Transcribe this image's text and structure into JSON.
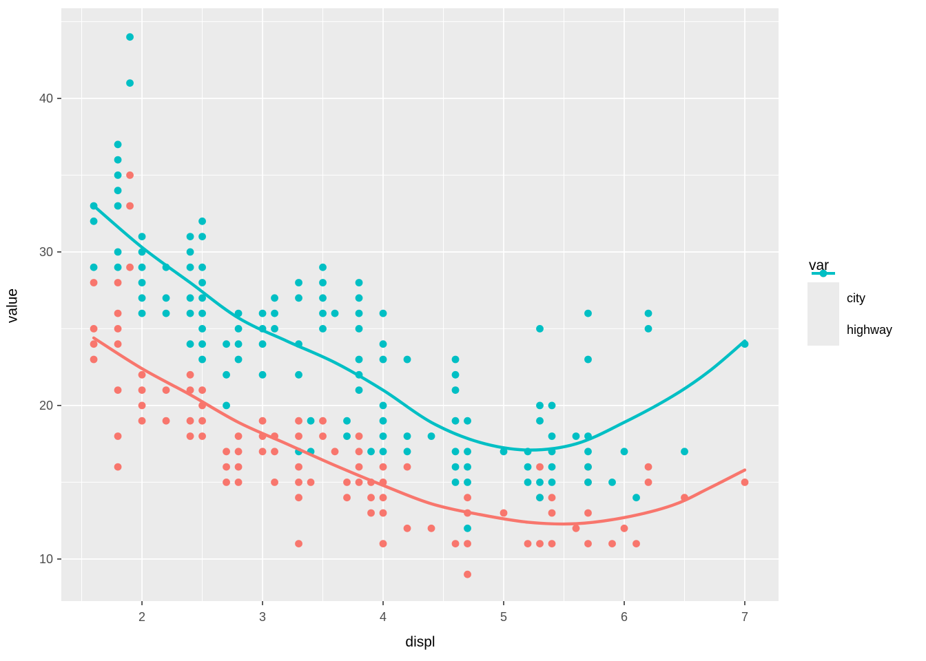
{
  "chart_data": {
    "type": "scatter",
    "title": "",
    "xlabel": "displ",
    "ylabel": "value",
    "x_ticks": [
      2,
      3,
      4,
      5,
      6,
      7
    ],
    "x_minor_ticks": [
      1.5,
      2.5,
      3.5,
      4.5,
      5.5,
      6.5
    ],
    "y_ticks": [
      10,
      20,
      30,
      40
    ],
    "y_minor_ticks": [
      15,
      25,
      35,
      45
    ],
    "x_domain": [
      1.331,
      7.28
    ],
    "y_domain": [
      7.26,
      45.87
    ],
    "grid": true,
    "panel_bg": "#EBEBEB",
    "grid_color": "#FFFFFF",
    "axis_text_color": "#4D4D4D",
    "tick_mark_color": "#333333",
    "legend_position": "right",
    "legend": {
      "title": "var",
      "entries": [
        {
          "label": "city",
          "color": "#F8766D"
        },
        {
          "label": "highway",
          "color": "#00BFC4"
        }
      ]
    },
    "series": [
      {
        "name": "city",
        "color": "#F8766D",
        "points": [
          [
            1.6,
            28
          ],
          [
            1.6,
            25
          ],
          [
            1.6,
            24
          ],
          [
            1.6,
            23
          ],
          [
            1.8,
            28
          ],
          [
            1.8,
            26
          ],
          [
            1.8,
            25
          ],
          [
            1.8,
            24
          ],
          [
            1.8,
            21
          ],
          [
            1.8,
            18
          ],
          [
            1.8,
            16
          ],
          [
            1.9,
            35
          ],
          [
            1.9,
            33
          ],
          [
            1.9,
            29
          ],
          [
            2.0,
            22
          ],
          [
            2.0,
            21
          ],
          [
            2.0,
            20
          ],
          [
            2.0,
            19
          ],
          [
            2.2,
            21
          ],
          [
            2.2,
            19
          ],
          [
            2.4,
            22
          ],
          [
            2.4,
            21
          ],
          [
            2.4,
            19
          ],
          [
            2.4,
            18
          ],
          [
            2.5,
            21
          ],
          [
            2.5,
            20
          ],
          [
            2.5,
            19
          ],
          [
            2.5,
            18
          ],
          [
            2.7,
            17
          ],
          [
            2.7,
            16
          ],
          [
            2.7,
            15
          ],
          [
            2.8,
            18
          ],
          [
            2.8,
            17
          ],
          [
            2.8,
            16
          ],
          [
            2.8,
            15
          ],
          [
            3.0,
            19
          ],
          [
            3.0,
            18
          ],
          [
            3.0,
            17
          ],
          [
            3.1,
            18
          ],
          [
            3.1,
            17
          ],
          [
            3.1,
            15
          ],
          [
            3.3,
            19
          ],
          [
            3.3,
            18
          ],
          [
            3.3,
            16
          ],
          [
            3.3,
            15
          ],
          [
            3.3,
            14
          ],
          [
            3.3,
            11
          ],
          [
            3.4,
            15
          ],
          [
            3.5,
            19
          ],
          [
            3.5,
            18
          ],
          [
            3.6,
            17
          ],
          [
            3.7,
            15
          ],
          [
            3.7,
            14
          ],
          [
            3.8,
            18
          ],
          [
            3.8,
            17
          ],
          [
            3.8,
            16
          ],
          [
            3.8,
            15
          ],
          [
            3.9,
            15
          ],
          [
            3.9,
            14
          ],
          [
            3.9,
            13
          ],
          [
            4.0,
            16
          ],
          [
            4.0,
            15
          ],
          [
            4.0,
            14
          ],
          [
            4.0,
            13
          ],
          [
            4.0,
            11
          ],
          [
            4.2,
            16
          ],
          [
            4.2,
            12
          ],
          [
            4.4,
            12
          ],
          [
            4.6,
            11
          ],
          [
            4.7,
            14
          ],
          [
            4.7,
            13
          ],
          [
            4.7,
            11
          ],
          [
            4.7,
            9
          ],
          [
            5.0,
            13
          ],
          [
            5.2,
            11
          ],
          [
            5.3,
            16
          ],
          [
            5.3,
            14
          ],
          [
            5.3,
            11
          ],
          [
            5.4,
            14
          ],
          [
            5.4,
            13
          ],
          [
            5.4,
            11
          ],
          [
            5.6,
            12
          ],
          [
            5.7,
            16
          ],
          [
            5.7,
            15
          ],
          [
            5.7,
            13
          ],
          [
            5.7,
            11
          ],
          [
            5.9,
            11
          ],
          [
            6.0,
            12
          ],
          [
            6.1,
            11
          ],
          [
            6.2,
            16
          ],
          [
            6.2,
            15
          ],
          [
            6.5,
            14
          ],
          [
            7.0,
            15
          ]
        ],
        "smooth": [
          [
            1.6,
            24.4
          ],
          [
            2.0,
            22.4
          ],
          [
            2.4,
            20.7
          ],
          [
            2.8,
            18.9
          ],
          [
            3.2,
            17.5
          ],
          [
            3.6,
            16.1
          ],
          [
            4.0,
            14.8
          ],
          [
            4.4,
            13.6
          ],
          [
            4.8,
            12.9
          ],
          [
            5.2,
            12.4
          ],
          [
            5.6,
            12.3
          ],
          [
            6.0,
            12.7
          ],
          [
            6.4,
            13.5
          ],
          [
            6.7,
            14.6
          ],
          [
            7.0,
            15.8
          ]
        ]
      },
      {
        "name": "highway",
        "color": "#00BFC4",
        "points": [
          [
            1.6,
            33
          ],
          [
            1.6,
            32
          ],
          [
            1.6,
            29
          ],
          [
            1.8,
            37
          ],
          [
            1.8,
            36
          ],
          [
            1.8,
            35
          ],
          [
            1.8,
            34
          ],
          [
            1.8,
            33
          ],
          [
            1.8,
            30
          ],
          [
            1.8,
            29
          ],
          [
            1.9,
            44
          ],
          [
            1.9,
            41
          ],
          [
            2.0,
            31
          ],
          [
            2.0,
            30
          ],
          [
            2.0,
            29
          ],
          [
            2.0,
            28
          ],
          [
            2.0,
            27
          ],
          [
            2.0,
            26
          ],
          [
            2.2,
            29
          ],
          [
            2.2,
            27
          ],
          [
            2.2,
            26
          ],
          [
            2.4,
            31
          ],
          [
            2.4,
            30
          ],
          [
            2.4,
            29
          ],
          [
            2.4,
            27
          ],
          [
            2.4,
            26
          ],
          [
            2.4,
            24
          ],
          [
            2.5,
            32
          ],
          [
            2.5,
            31
          ],
          [
            2.5,
            29
          ],
          [
            2.5,
            28
          ],
          [
            2.5,
            27
          ],
          [
            2.5,
            26
          ],
          [
            2.5,
            25
          ],
          [
            2.5,
            24
          ],
          [
            2.5,
            23
          ],
          [
            2.7,
            24
          ],
          [
            2.7,
            22
          ],
          [
            2.7,
            20
          ],
          [
            2.8,
            26
          ],
          [
            2.8,
            25
          ],
          [
            2.8,
            24
          ],
          [
            2.8,
            23
          ],
          [
            3.0,
            26
          ],
          [
            3.0,
            25
          ],
          [
            3.0,
            24
          ],
          [
            3.0,
            22
          ],
          [
            3.1,
            27
          ],
          [
            3.1,
            26
          ],
          [
            3.1,
            25
          ],
          [
            3.3,
            28
          ],
          [
            3.3,
            27
          ],
          [
            3.3,
            24
          ],
          [
            3.3,
            22
          ],
          [
            3.3,
            17
          ],
          [
            3.4,
            19
          ],
          [
            3.4,
            17
          ],
          [
            3.5,
            29
          ],
          [
            3.5,
            28
          ],
          [
            3.5,
            27
          ],
          [
            3.5,
            26
          ],
          [
            3.5,
            25
          ],
          [
            3.6,
            26
          ],
          [
            3.7,
            19
          ],
          [
            3.7,
            18
          ],
          [
            3.8,
            28
          ],
          [
            3.8,
            27
          ],
          [
            3.8,
            26
          ],
          [
            3.8,
            25
          ],
          [
            3.8,
            23
          ],
          [
            3.8,
            22
          ],
          [
            3.8,
            21
          ],
          [
            3.9,
            17
          ],
          [
            4.0,
            26
          ],
          [
            4.0,
            24
          ],
          [
            4.0,
            23
          ],
          [
            4.0,
            20
          ],
          [
            4.0,
            19
          ],
          [
            4.0,
            18
          ],
          [
            4.0,
            17
          ],
          [
            4.2,
            23
          ],
          [
            4.2,
            18
          ],
          [
            4.2,
            17
          ],
          [
            4.4,
            18
          ],
          [
            4.6,
            23
          ],
          [
            4.6,
            22
          ],
          [
            4.6,
            21
          ],
          [
            4.6,
            19
          ],
          [
            4.6,
            17
          ],
          [
            4.6,
            16
          ],
          [
            4.6,
            15
          ],
          [
            4.7,
            19
          ],
          [
            4.7,
            17
          ],
          [
            4.7,
            16
          ],
          [
            4.7,
            15
          ],
          [
            4.7,
            12
          ],
          [
            5.0,
            17
          ],
          [
            5.2,
            17
          ],
          [
            5.2,
            16
          ],
          [
            5.2,
            15
          ],
          [
            5.3,
            25
          ],
          [
            5.3,
            20
          ],
          [
            5.3,
            19
          ],
          [
            5.3,
            15
          ],
          [
            5.3,
            14
          ],
          [
            5.4,
            20
          ],
          [
            5.4,
            18
          ],
          [
            5.4,
            17
          ],
          [
            5.4,
            16
          ],
          [
            5.4,
            15
          ],
          [
            5.6,
            18
          ],
          [
            5.7,
            26
          ],
          [
            5.7,
            23
          ],
          [
            5.7,
            18
          ],
          [
            5.7,
            17
          ],
          [
            5.7,
            16
          ],
          [
            5.7,
            15
          ],
          [
            5.9,
            15
          ],
          [
            6.0,
            17
          ],
          [
            6.1,
            14
          ],
          [
            6.2,
            26
          ],
          [
            6.2,
            25
          ],
          [
            6.5,
            17
          ],
          [
            7.0,
            24
          ]
        ],
        "smooth": [
          [
            1.6,
            33.0
          ],
          [
            2.0,
            30.3
          ],
          [
            2.4,
            28.0
          ],
          [
            2.8,
            25.7
          ],
          [
            3.2,
            24.2
          ],
          [
            3.6,
            22.8
          ],
          [
            4.0,
            21.0
          ],
          [
            4.4,
            18.9
          ],
          [
            4.8,
            17.6
          ],
          [
            5.2,
            17.1
          ],
          [
            5.6,
            17.5
          ],
          [
            6.0,
            18.9
          ],
          [
            6.4,
            20.6
          ],
          [
            6.7,
            22.2
          ],
          [
            7.0,
            24.2
          ]
        ]
      }
    ]
  }
}
